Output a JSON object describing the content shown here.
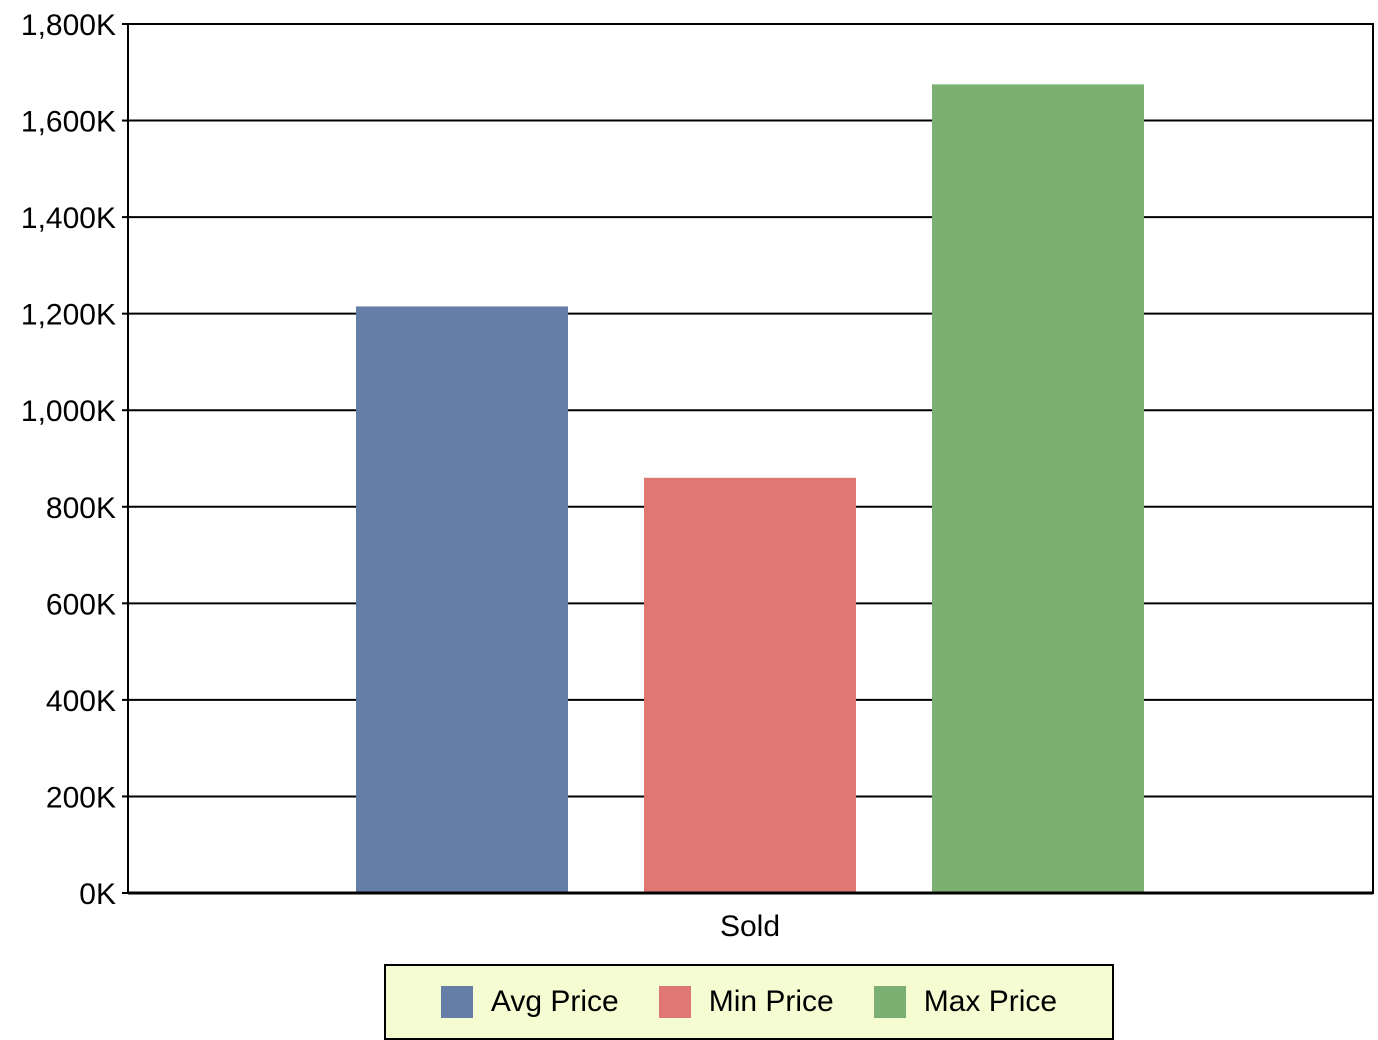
{
  "chart_data": {
    "type": "bar",
    "categories": [
      "Sold"
    ],
    "series": [
      {
        "name": "Avg Price",
        "values": [
          1215000
        ],
        "color": "#647ea6"
      },
      {
        "name": "Min Price",
        "values": [
          860000
        ],
        "color": "#df7872"
      },
      {
        "name": "Max Price",
        "values": [
          1675000
        ],
        "color": "#7cb073"
      }
    ],
    "ylim": [
      0,
      1800000
    ],
    "yticks": [
      "0K",
      "200K",
      "400K",
      "600K",
      "800K",
      "1,000K",
      "1,200K",
      "1,400K",
      "1,600K",
      "1,800K"
    ],
    "grid": true,
    "legend_position": "bottom"
  }
}
